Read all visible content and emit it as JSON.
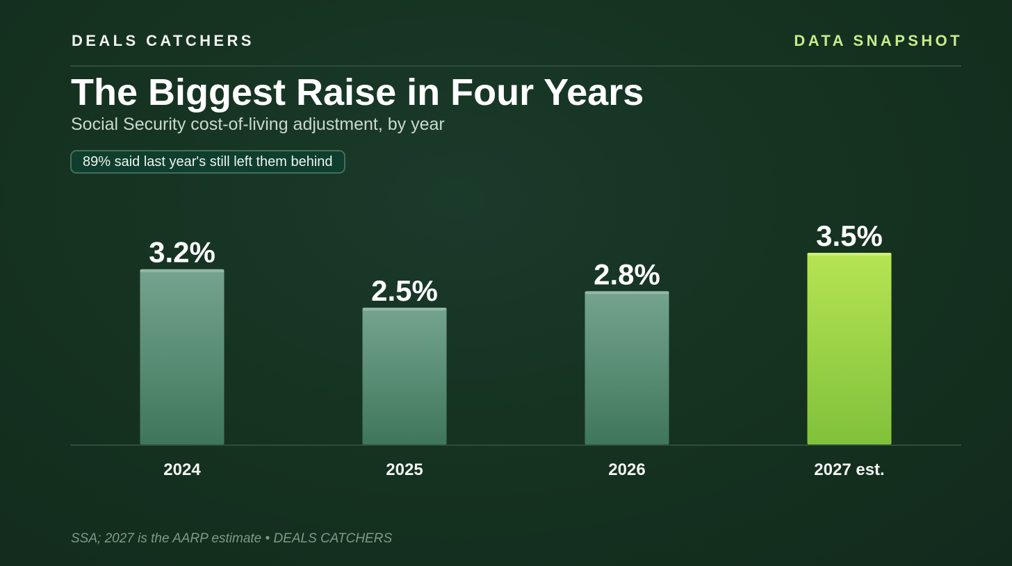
{
  "header": {
    "brand": "DEALS CATCHERS",
    "tag": "DATA SNAPSHOT"
  },
  "title": "The Biggest Raise in Four Years",
  "subtitle": "Social Security cost-of-living adjustment, by year",
  "callout": "89% said last year's still left them behind",
  "source": "SSA; 2027 is the AARP estimate • DEALS CATCHERS",
  "colors": {
    "background": "#15311f",
    "accent": "#c9ec8c",
    "bar": "#6fa38a",
    "highlight_bar": "#a6dc4a"
  },
  "chart_data": {
    "type": "bar",
    "categories": [
      "2024",
      "2025",
      "2026",
      "2027 est."
    ],
    "values": [
      3.2,
      2.5,
      2.8,
      3.5
    ],
    "value_labels": [
      "3.2%",
      "2.5%",
      "2.8%",
      "3.5%"
    ],
    "highlight_index": 3,
    "unit": "%",
    "ylim": [
      0,
      3.5
    ],
    "grid": false,
    "legend": "none"
  }
}
